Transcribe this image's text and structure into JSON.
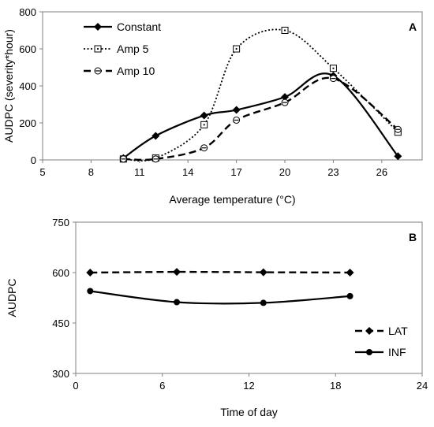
{
  "chart_data": [
    {
      "panel_label": "A",
      "type": "line",
      "xlabel": "Average temperature (°C)",
      "ylabel": "AUDPC (severity*hour)",
      "xlim": [
        5,
        28.5
      ],
      "ylim": [
        0,
        800
      ],
      "x_ticks": [
        5,
        8,
        11,
        14,
        17,
        20,
        23,
        26
      ],
      "y_ticks": [
        0,
        200,
        400,
        600,
        800
      ],
      "grid": false,
      "legend_position": "top-left",
      "series": [
        {
          "name": "Constant",
          "line_style": "solid",
          "marker": "filled-diamond",
          "x": [
            10,
            12,
            15,
            17,
            20,
            23,
            27
          ],
          "values": [
            10,
            130,
            240,
            270,
            340,
            455,
            20
          ]
        },
        {
          "name": "Amp 5",
          "line_style": "dotted",
          "marker": "open-square-dot",
          "x": [
            10,
            12,
            15,
            17,
            20,
            23,
            27
          ],
          "values": [
            5,
            10,
            190,
            600,
            700,
            495,
            150
          ]
        },
        {
          "name": "Amp 10",
          "line_style": "dashed",
          "marker": "open-circle-dash",
          "x": [
            10,
            12,
            15,
            17,
            20,
            23,
            27
          ],
          "values": [
            5,
            5,
            65,
            215,
            310,
            440,
            165
          ]
        }
      ]
    },
    {
      "panel_label": "B",
      "type": "line",
      "xlabel": "Time of day",
      "ylabel": "AUDPC",
      "xlim": [
        0,
        24
      ],
      "ylim": [
        300,
        750
      ],
      "x_ticks": [
        0,
        6,
        12,
        18,
        24
      ],
      "y_ticks": [
        300,
        450,
        600,
        750
      ],
      "grid": false,
      "legend_position": "bottom-right",
      "series": [
        {
          "name": "LAT",
          "line_style": "dashed",
          "marker": "filled-diamond",
          "x": [
            1,
            7,
            13,
            19
          ],
          "values": [
            600,
            602,
            601,
            600
          ]
        },
        {
          "name": "INF",
          "line_style": "solid",
          "marker": "filled-circle",
          "x": [
            1,
            7,
            13,
            19
          ],
          "values": [
            545,
            512,
            510,
            530
          ]
        }
      ]
    }
  ]
}
